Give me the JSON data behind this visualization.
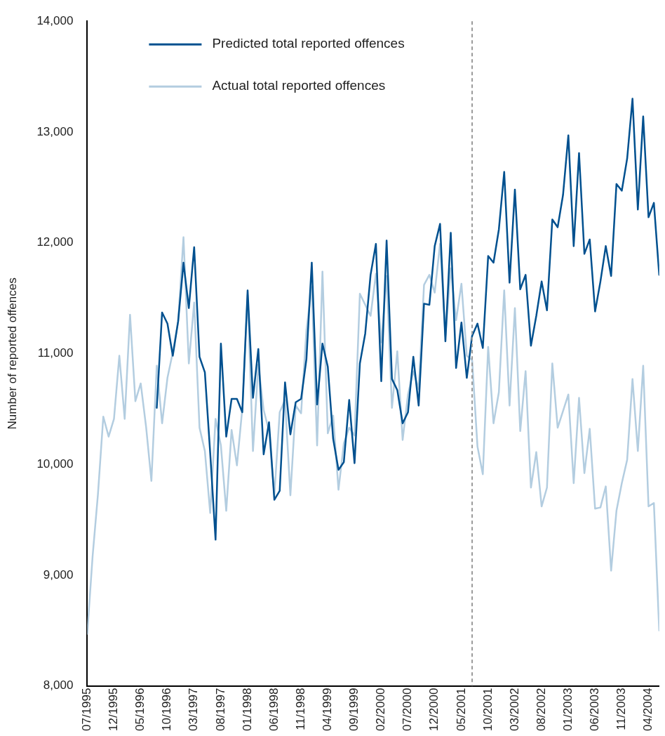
{
  "chart_data": {
    "type": "line",
    "ylabel": "Number of reported offences",
    "x": [
      "1995-07",
      "1995-08",
      "1995-09",
      "1995-10",
      "1995-11",
      "1995-12",
      "1996-01",
      "1996-02",
      "1996-03",
      "1996-04",
      "1996-05",
      "1996-06",
      "1996-07",
      "1996-08",
      "1996-09",
      "1996-10",
      "1996-11",
      "1996-12",
      "1997-01",
      "1997-02",
      "1997-03",
      "1997-04",
      "1997-05",
      "1997-06",
      "1997-07",
      "1997-08",
      "1997-09",
      "1997-10",
      "1997-11",
      "1997-12",
      "1998-01",
      "1998-02",
      "1998-03",
      "1998-04",
      "1998-05",
      "1998-06",
      "1998-07",
      "1998-08",
      "1998-09",
      "1998-10",
      "1998-11",
      "1998-12",
      "1999-01",
      "1999-02",
      "1999-03",
      "1999-04",
      "1999-05",
      "1999-06",
      "1999-07",
      "1999-08",
      "1999-09",
      "1999-10",
      "1999-11",
      "1999-12",
      "2000-01",
      "2000-02",
      "2000-03",
      "2000-04",
      "2000-05",
      "2000-06",
      "2000-07",
      "2000-08",
      "2000-09",
      "2000-10",
      "2000-11",
      "2000-12",
      "2001-01",
      "2001-02",
      "2001-03",
      "2001-04",
      "2001-05",
      "2001-06",
      "2001-07",
      "2001-08",
      "2001-09",
      "2001-10",
      "2001-11",
      "2001-12",
      "2002-01",
      "2002-02",
      "2002-03",
      "2002-04",
      "2002-05",
      "2002-06",
      "2002-07",
      "2002-08",
      "2002-09",
      "2002-10",
      "2002-11",
      "2002-12",
      "2003-01",
      "2003-02",
      "2003-03",
      "2003-04",
      "2003-05",
      "2003-06",
      "2003-07",
      "2003-08",
      "2003-09",
      "2003-10",
      "2003-11",
      "2003-12",
      "2004-01",
      "2004-02",
      "2004-03",
      "2004-04",
      "2004-05",
      "2004-06"
    ],
    "series": [
      {
        "name": "Predicted total reported offences",
        "color": "#00508f",
        "values": [
          null,
          null,
          null,
          null,
          null,
          null,
          null,
          null,
          null,
          null,
          null,
          null,
          null,
          10510,
          11370,
          11270,
          10980,
          11290,
          11820,
          11410,
          11960,
          10970,
          10830,
          10100,
          9320,
          11090,
          10250,
          10590,
          10590,
          10470,
          11570,
          10600,
          11040,
          10090,
          10380,
          9680,
          9760,
          10740,
          10270,
          10560,
          10590,
          10950,
          11820,
          10540,
          11090,
          10880,
          10230,
          9950,
          10020,
          10580,
          10010,
          10910,
          11180,
          11710,
          11990,
          10750,
          12020,
          10770,
          10670,
          10370,
          10470,
          10970,
          10530,
          11450,
          11440,
          11970,
          12170,
          11110,
          12090,
          10870,
          11280,
          10780,
          11160,
          11270,
          11050,
          11880,
          11820,
          12120,
          12640,
          11640,
          12480,
          11580,
          11710,
          11070,
          11340,
          11650,
          11390,
          12210,
          12140,
          12430,
          12970,
          11970,
          12810,
          11900,
          12030,
          11380,
          11650,
          11970,
          11700,
          12530,
          12470,
          12760,
          13300,
          12300,
          13140,
          12230,
          12360,
          11710
        ]
      },
      {
        "name": "Actual total reported offences",
        "color": "#b3cde0",
        "values": [
          8470,
          9170,
          9730,
          10430,
          10250,
          10410,
          10980,
          10410,
          11350,
          10570,
          10730,
          10340,
          9850,
          10890,
          10370,
          10780,
          11010,
          11290,
          12050,
          10910,
          11460,
          10330,
          10120,
          9560,
          10410,
          10170,
          9580,
          10310,
          9990,
          10500,
          11530,
          10120,
          10900,
          10490,
          10300,
          9720,
          10470,
          10580,
          9720,
          10530,
          10460,
          11210,
          11600,
          10170,
          11740,
          10280,
          10440,
          9770,
          10190,
          10330,
          10260,
          11540,
          11440,
          11340,
          11720,
          11100,
          11700,
          10510,
          11020,
          10220,
          10630,
          10840,
          10680,
          11620,
          11710,
          11550,
          11990,
          11160,
          11770,
          11300,
          11630,
          10980,
          10940,
          10160,
          9910,
          11060,
          10370,
          10650,
          11570,
          10530,
          11410,
          10300,
          10840,
          9790,
          10110,
          9620,
          9790,
          10910,
          10330,
          10480,
          10630,
          9830,
          10600,
          9920,
          10320,
          9600,
          9610,
          9800,
          9040,
          9580,
          9830,
          10040,
          10770,
          10120,
          10890,
          9620,
          9650,
          8500
        ]
      }
    ],
    "xlim": [
      "1995-07",
      "2004-06"
    ],
    "xticks": [
      {
        "value": "1995-07",
        "label": "07/1995"
      },
      {
        "value": "1995-12",
        "label": "12/1995"
      },
      {
        "value": "1996-05",
        "label": "05/1996"
      },
      {
        "value": "1996-10",
        "label": "10/1996"
      },
      {
        "value": "1997-03",
        "label": "03/1997"
      },
      {
        "value": "1997-08",
        "label": "08/1997"
      },
      {
        "value": "1998-01",
        "label": "01/1998"
      },
      {
        "value": "1998-06",
        "label": "06/1998"
      },
      {
        "value": "1998-11",
        "label": "11/1998"
      },
      {
        "value": "1999-04",
        "label": "04/1999"
      },
      {
        "value": "1999-09",
        "label": "09/1999"
      },
      {
        "value": "2000-02",
        "label": "02/2000"
      },
      {
        "value": "2000-07",
        "label": "07/2000"
      },
      {
        "value": "2000-12",
        "label": "12/2000"
      },
      {
        "value": "2001-05",
        "label": "05/2001"
      },
      {
        "value": "2001-10",
        "label": "10/2001"
      },
      {
        "value": "2002-03",
        "label": "03/2002"
      },
      {
        "value": "2002-08",
        "label": "08/2002"
      },
      {
        "value": "2003-01",
        "label": "01/2003"
      },
      {
        "value": "2003-06",
        "label": "06/2003"
      },
      {
        "value": "2003-11",
        "label": "11/2003"
      },
      {
        "value": "2004-04",
        "label": "04/2004"
      }
    ],
    "ylim": [
      8000,
      14000
    ],
    "yticks": [
      {
        "value": 8000,
        "label": "8,000"
      },
      {
        "value": 9000,
        "label": "9,000"
      },
      {
        "value": 10000,
        "label": "10,000"
      },
      {
        "value": 11000,
        "label": "11,000"
      },
      {
        "value": 12000,
        "label": "12,000"
      },
      {
        "value": 13000,
        "label": "13,000"
      },
      {
        "value": 14000,
        "label": "14,000"
      }
    ],
    "ref_lines": [
      {
        "axis": "x",
        "value": "2001-07",
        "color": "#999999",
        "line_style": "dashed"
      }
    ],
    "legend": "top left",
    "grid": false,
    "marker": "none",
    "line_style": "solid"
  }
}
